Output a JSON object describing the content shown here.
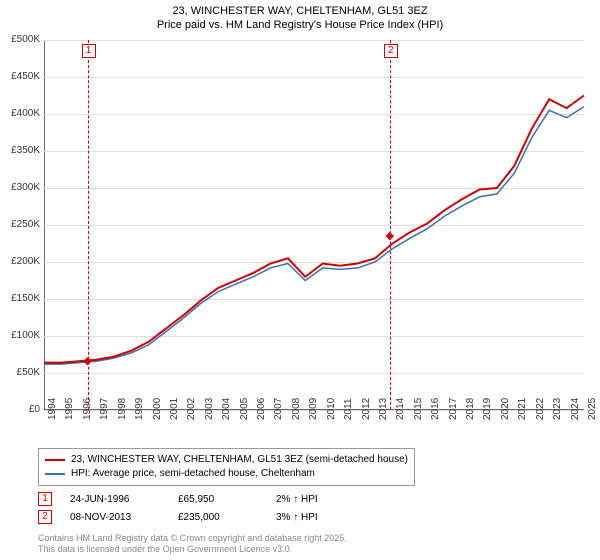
{
  "title_line1": "23, WINCHESTER WAY, CHELTENHAM, GL51 3EZ",
  "title_line2": "Price paid vs. HM Land Registry's House Price Index (HPI)",
  "chart": {
    "type": "line",
    "x_start": 1994,
    "x_end": 2025,
    "ylim": [
      0,
      500000
    ],
    "ytick_step": 50000,
    "y_labels": [
      "£0",
      "£50K",
      "£100K",
      "£150K",
      "£200K",
      "£250K",
      "£300K",
      "£350K",
      "£400K",
      "£450K",
      "£500K"
    ],
    "x_labels": [
      "1994",
      "1995",
      "1996",
      "1997",
      "1998",
      "1999",
      "2000",
      "2001",
      "2002",
      "2003",
      "2004",
      "2005",
      "2006",
      "2007",
      "2008",
      "2009",
      "2010",
      "2011",
      "2012",
      "2013",
      "2014",
      "2015",
      "2016",
      "2017",
      "2018",
      "2019",
      "2020",
      "2021",
      "2022",
      "2023",
      "2024",
      "2025"
    ],
    "series1_color": "#cc0000",
    "series2_color": "#3b6fb6",
    "series2_width": 1.5,
    "series1_width": 2,
    "background_color": "#ffffff",
    "grid_color": "#e0e0e0",
    "series1_values": [
      64,
      64,
      66,
      68,
      72,
      80,
      92,
      110,
      128,
      148,
      165,
      175,
      185,
      198,
      205,
      180,
      198,
      195,
      198,
      205,
      225,
      240,
      252,
      270,
      285,
      298,
      300,
      330,
      380,
      420,
      408,
      425
    ],
    "series2_values": [
      62,
      62,
      64,
      66,
      70,
      77,
      88,
      106,
      124,
      144,
      160,
      170,
      180,
      192,
      198,
      175,
      192,
      190,
      192,
      200,
      218,
      232,
      245,
      262,
      276,
      288,
      292,
      320,
      368,
      405,
      395,
      410
    ],
    "markers": [
      {
        "id": "1",
        "year": 1996.5,
        "y_value": 65950
      },
      {
        "id": "2",
        "year": 2013.85,
        "y_value": 235000
      }
    ]
  },
  "legend": {
    "item1": "23, WINCHESTER WAY, CHELTENHAM, GL51 3EZ (semi-detached house)",
    "item2": "HPI: Average price, semi-detached house, Cheltenham"
  },
  "sales": [
    {
      "id": "1",
      "date": "24-JUN-1996",
      "price": "£65,950",
      "change": "2% ↑ HPI"
    },
    {
      "id": "2",
      "date": "08-NOV-2013",
      "price": "£235,000",
      "change": "3% ↑ HPI"
    }
  ],
  "footer_line1": "Contains HM Land Registry data © Crown copyright and database right 2025.",
  "footer_line2": "This data is licensed under the Open Government Licence v3.0."
}
